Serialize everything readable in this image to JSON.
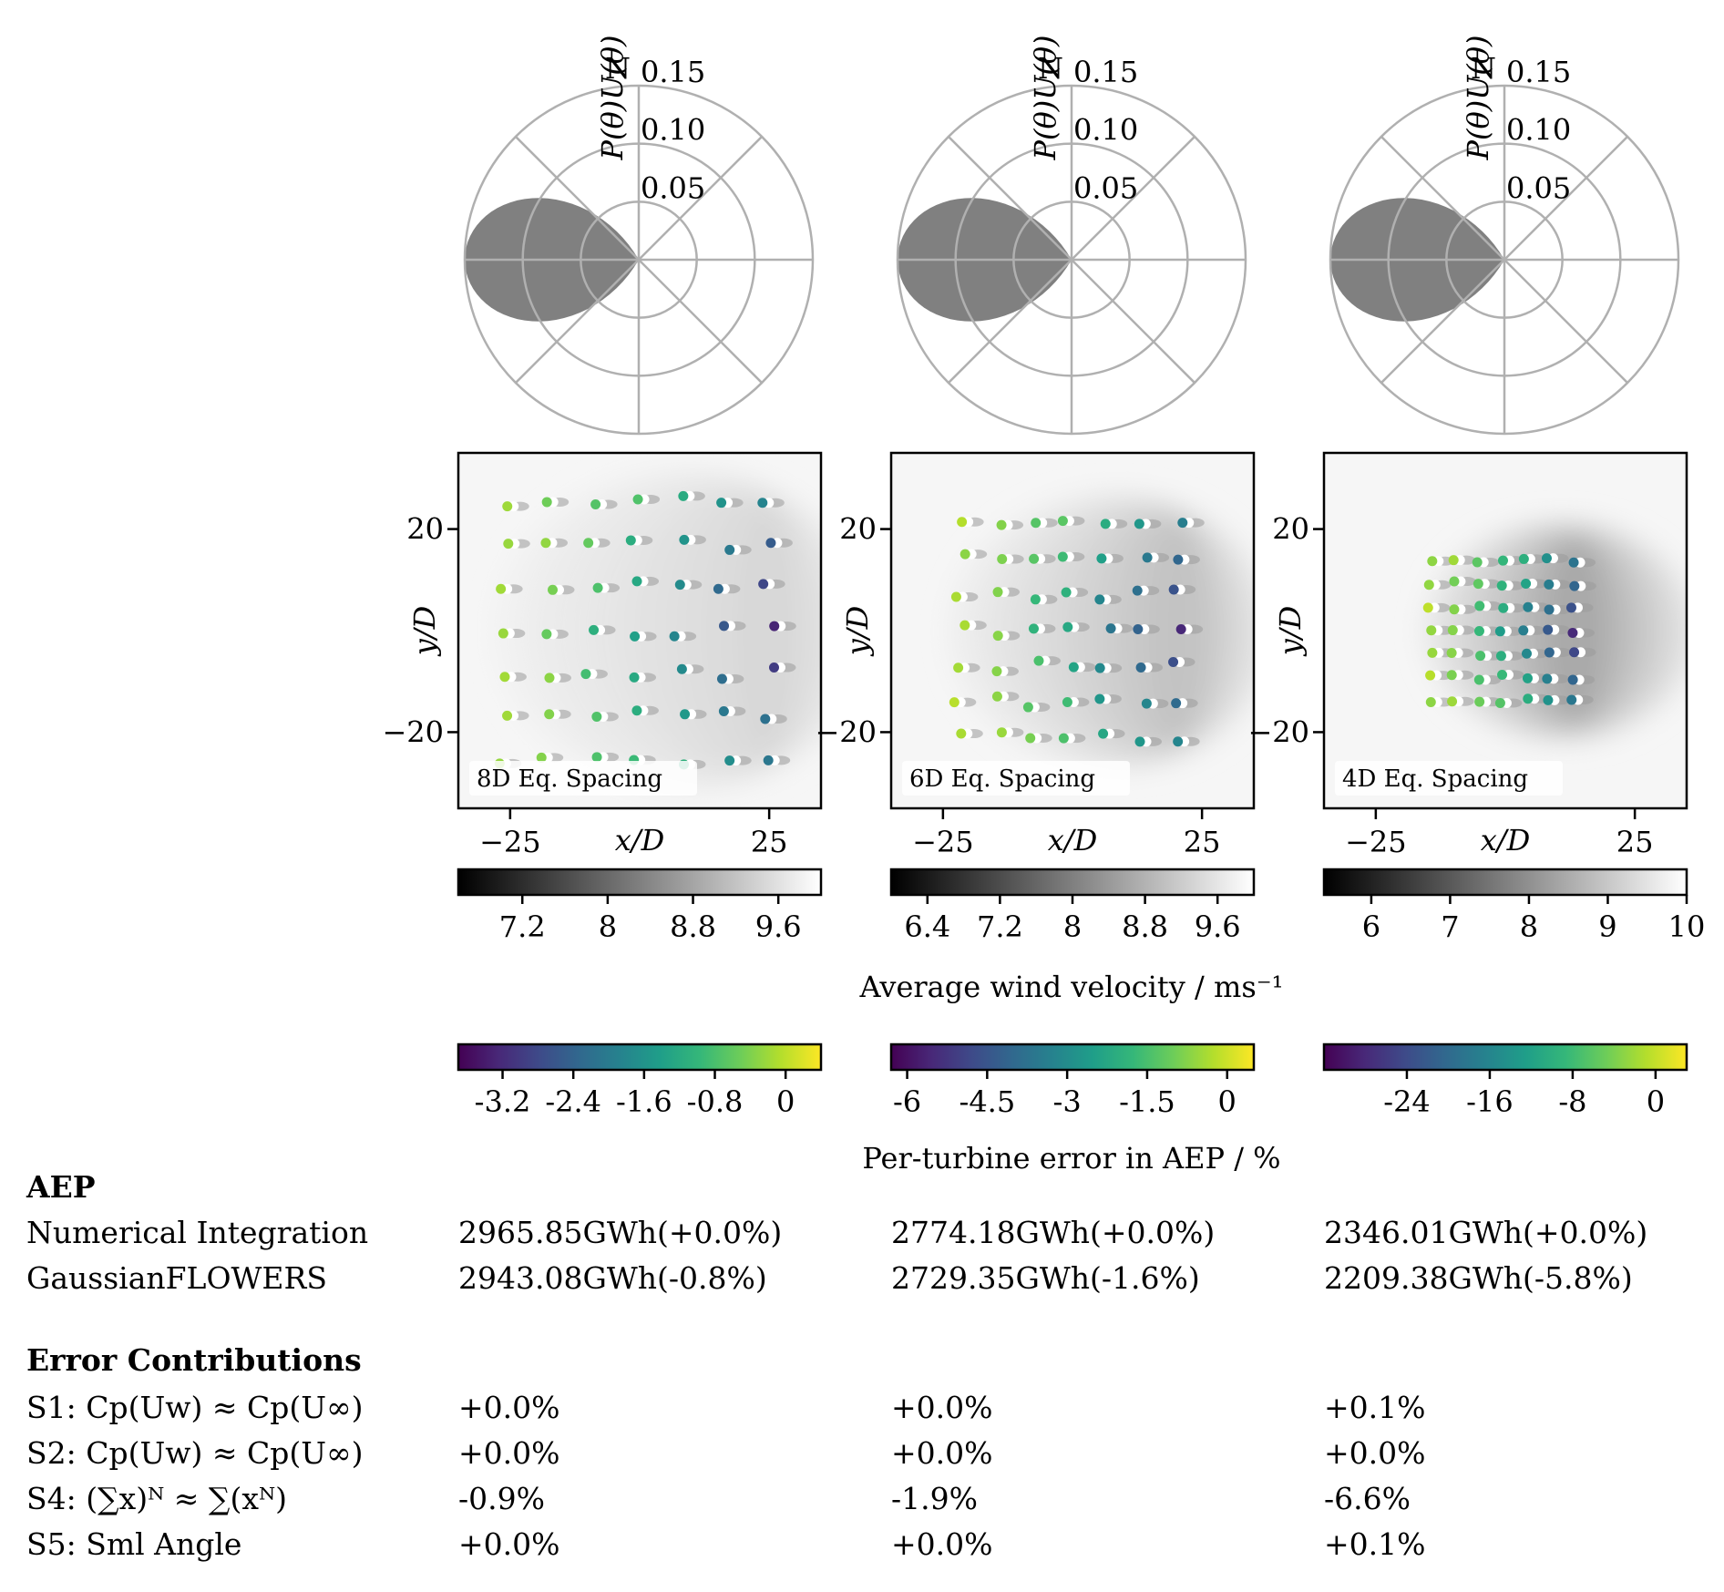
{
  "chart_data": {
    "type": "composite",
    "wind_rose": {
      "type": "polar-area",
      "r_label": "P(θ)U(θ)",
      "north_label": "N",
      "r_ticks": [
        0.05,
        0.1,
        0.15
      ],
      "r_tick_labels": [
        "0.05",
        "0.10",
        "0.15"
      ],
      "r_max": 0.15,
      "shape": {
        "center_deg": 270,
        "halfwidth_deg": 60,
        "peak": 0.15
      },
      "color": "#808080"
    },
    "panels": [
      {
        "label": "8D Eq. Spacing",
        "xlabel": "x/D",
        "ylabel": "y/D",
        "x_ticks": [
          -25,
          25
        ],
        "x_tick_labels": [
          "−25",
          "25"
        ],
        "y_ticks": [
          20,
          -20
        ],
        "y_tick_labels": [
          "20",
          "−20"
        ],
        "xlim": [
          -35,
          35
        ],
        "ylim": [
          -35,
          35
        ],
        "velocity_colorbar": {
          "min": 6.6,
          "max": 10,
          "ticks": [
            7.2,
            8,
            8.8,
            9.6
          ],
          "tick_labels": [
            "7.2",
            "8",
            "8.8",
            "9.6"
          ]
        },
        "error_colorbar": {
          "min": -3.7,
          "max": 0.4,
          "ticks": [
            -3.2,
            -2.4,
            -1.6,
            -0.8,
            0
          ],
          "tick_labels": [
            "-3.2",
            "-2.4",
            "-1.6",
            "-0.8",
            "0"
          ]
        },
        "grid": {
          "nx": 7,
          "ny": 7,
          "spacing": 8.5,
          "jitter": 1.3
        },
        "wake": {
          "strength": 0.18,
          "length": 70,
          "halfwidth": 29
        }
      },
      {
        "label": "6D Eq. Spacing",
        "xlabel": "x/D",
        "ylabel": "y/D",
        "x_ticks": [
          -25,
          25
        ],
        "x_tick_labels": [
          "−25",
          "25"
        ],
        "y_ticks": [
          20,
          -20
        ],
        "y_tick_labels": [
          "20",
          "−20"
        ],
        "xlim": [
          -35,
          35
        ],
        "ylim": [
          -35,
          35
        ],
        "velocity_colorbar": {
          "min": 6.0,
          "max": 10,
          "ticks": [
            6.4,
            7.2,
            8,
            8.8,
            9.6
          ],
          "tick_labels": [
            "6.4",
            "7.2",
            "8",
            "8.8",
            "9.6"
          ]
        },
        "error_colorbar": {
          "min": -6.3,
          "max": 0.5,
          "ticks": [
            -6,
            -4.5,
            -3,
            -1.5,
            0
          ],
          "tick_labels": [
            "-6",
            "-4.5",
            "-3",
            "-1.5",
            "0"
          ]
        },
        "grid": {
          "nx": 7,
          "ny": 7,
          "spacing": 7,
          "jitter": 1.2
        },
        "wake": {
          "strength": 0.3,
          "length": 60,
          "halfwidth": 25
        }
      },
      {
        "label": "4D Eq. Spacing",
        "xlabel": "x/D",
        "ylabel": "y/D",
        "x_ticks": [
          -25,
          25
        ],
        "x_tick_labels": [
          "−25",
          "25"
        ],
        "y_ticks": [
          20,
          -20
        ],
        "y_tick_labels": [
          "20",
          "−20"
        ],
        "xlim": [
          -35,
          35
        ],
        "ylim": [
          -35,
          35
        ],
        "velocity_colorbar": {
          "min": 5.4,
          "max": 10,
          "ticks": [
            6,
            7,
            8,
            9,
            10
          ],
          "tick_labels": [
            "6",
            "7",
            "8",
            "9",
            "10"
          ]
        },
        "error_colorbar": {
          "min": -32,
          "max": 3,
          "ticks": [
            -24,
            -16,
            -8,
            0
          ],
          "tick_labels": [
            "-24",
            "-16",
            "-8",
            "0"
          ]
        },
        "grid": {
          "nx": 7,
          "ny": 7,
          "spacing": 4.6,
          "jitter": 0.5
        },
        "wake": {
          "strength": 0.45,
          "length": 50,
          "halfwidth": 20
        }
      }
    ],
    "velocity_colorbar_label": "Average wind velocity / ms⁻¹",
    "error_colorbar_label": "Per-turbine error in AEP / %"
  },
  "table": {
    "aep_heading": "AEP",
    "aep_rows": [
      {
        "label": "Numerical Integration",
        "values": [
          "2965.85GWh(+0.0%)",
          "2774.18GWh(+0.0%)",
          "2346.01GWh(+0.0%)"
        ]
      },
      {
        "label": "GaussianFLOWERS",
        "values": [
          "2943.08GWh(-0.8%)",
          "2729.35GWh(-1.6%)",
          "2209.38GWh(-5.8%)"
        ]
      }
    ],
    "error_heading": "Error Contributions",
    "error_rows": [
      {
        "label": "S1:  Cp(Uw) ≈ Cp(U∞)",
        "values": [
          "+0.0%",
          "+0.0%",
          "+0.1%"
        ]
      },
      {
        "label": "S2:  Cp(Uw) ≈ Cp(U∞)",
        "values": [
          "+0.0%",
          "+0.0%",
          "+0.0%"
        ]
      },
      {
        "label": "S4:  (∑x)ᴺ ≈ ∑(xᴺ)",
        "values": [
          "-0.9%",
          "-1.9%",
          "-6.6%"
        ]
      },
      {
        "label": "S5:  Sml Angle",
        "values": [
          "+0.0%",
          "+0.0%",
          "+0.1%"
        ]
      }
    ]
  }
}
